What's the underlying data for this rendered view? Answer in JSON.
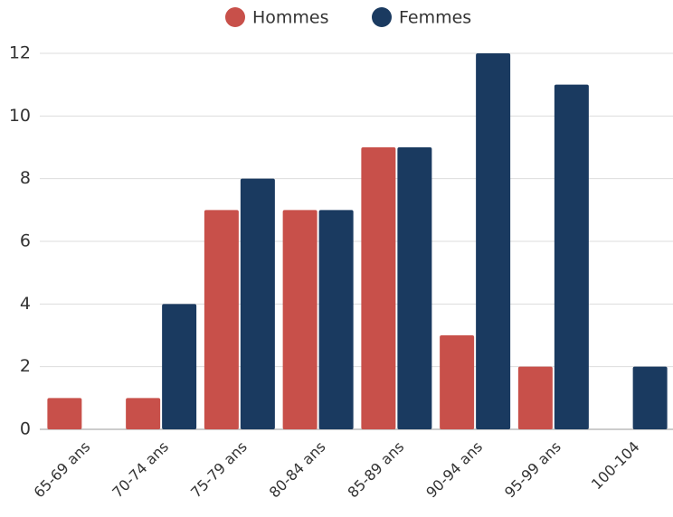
{
  "chart_data": {
    "type": "bar",
    "categories": [
      "65-69 ans",
      "70-74 ans",
      "75-79 ans",
      "80-84 ans",
      "85-89 ans",
      "90-94 ans",
      "95-99 ans",
      "100-104"
    ],
    "series": [
      {
        "name": "Hommes",
        "color": "#c8504a",
        "values": [
          1,
          1,
          7,
          7,
          9,
          3,
          2,
          0
        ]
      },
      {
        "name": "Femmes",
        "color": "#1a3a60",
        "values": [
          0,
          4,
          8,
          7,
          9,
          12,
          11,
          2
        ]
      }
    ],
    "ylim": [
      0,
      12
    ],
    "yticks": [
      0,
      2,
      4,
      6,
      8,
      10,
      12
    ],
    "grid": true,
    "legend": "top"
  }
}
